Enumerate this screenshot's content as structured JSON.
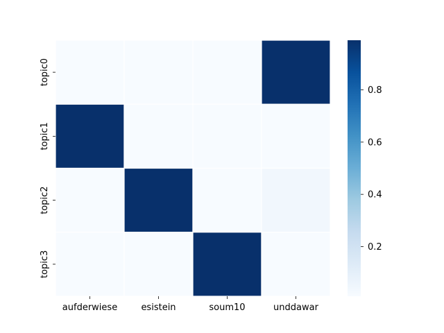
{
  "chart_data": {
    "type": "heatmap",
    "title": "",
    "xlabel": "",
    "ylabel": "",
    "x_categories": [
      "aufderwiese",
      "esistein",
      "soum10",
      "unddawar"
    ],
    "y_categories": [
      "topic0",
      "topic1",
      "topic2",
      "topic3"
    ],
    "values": [
      [
        0.01,
        0.01,
        0.01,
        0.99
      ],
      [
        0.99,
        0.01,
        0.01,
        0.01
      ],
      [
        0.01,
        0.99,
        0.01,
        0.04
      ],
      [
        0.01,
        0.01,
        0.99,
        0.01
      ]
    ],
    "colormap": "Blues",
    "vmin": 0.01,
    "vmax": 0.99,
    "colorbar": {
      "ticks": [
        0.2,
        0.4,
        0.6,
        0.8
      ],
      "tick_labels": [
        "0.2",
        "0.4",
        "0.6",
        "0.8"
      ]
    },
    "cell_border_color": "#ffffff",
    "grid": false,
    "legend": "colorbar-right"
  }
}
